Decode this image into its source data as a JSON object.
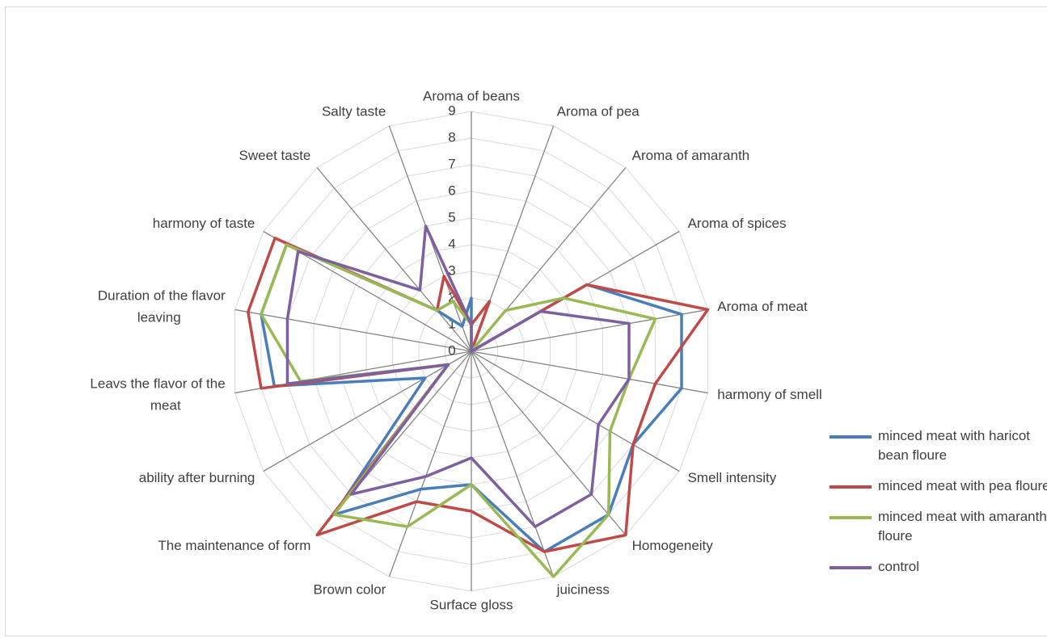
{
  "chart_data": {
    "type": "radar",
    "categories": [
      "Aroma of beans",
      "Aroma of pea",
      "Aroma of amaranth",
      "Aroma of spices",
      "Aroma of meat",
      "harmony of smell",
      "Smell intensity",
      "Homogeneity",
      "juiciness",
      "Surface gloss",
      "Brown color",
      "The maintenance of form",
      "ability after burning",
      "Leavs the flavor of the meat",
      "Duration of the flavor leaving",
      "harmony of taste",
      "Sweet taste",
      "Salty taste"
    ],
    "series": [
      {
        "name": " minced meat  with haricot bean floure",
        "color": "#4a7ebb",
        "values": [
          2,
          0,
          0,
          5,
          8,
          8,
          7,
          8,
          8,
          5,
          5.5,
          8,
          2,
          7.5,
          8,
          8,
          2,
          1
        ]
      },
      {
        "name": "minced meat with pea floure",
        "color": "#be4b48",
        "values": [
          1,
          2,
          0,
          5,
          9,
          7,
          7,
          9,
          8,
          6,
          6,
          9,
          1,
          8,
          8.5,
          8.5,
          2,
          3
        ]
      },
      {
        "name": "minced meat with amaranth floure",
        "color": "#98b954",
        "values": [
          1,
          0,
          2,
          4,
          7,
          6,
          6,
          8,
          9,
          5,
          7,
          8,
          1,
          6.5,
          8,
          8,
          2,
          2
        ]
      },
      {
        "name": "control",
        "color": "#7d60a0",
        "values": [
          1,
          0,
          0,
          3,
          6,
          6,
          5.5,
          7,
          7,
          4,
          5,
          7,
          1,
          7,
          7,
          7.5,
          3,
          5
        ]
      }
    ],
    "ylim": [
      0,
      9
    ],
    "yticks": [
      0,
      1,
      2,
      3,
      4,
      5,
      6,
      7,
      8,
      9
    ],
    "grid": true,
    "legend": "right"
  }
}
